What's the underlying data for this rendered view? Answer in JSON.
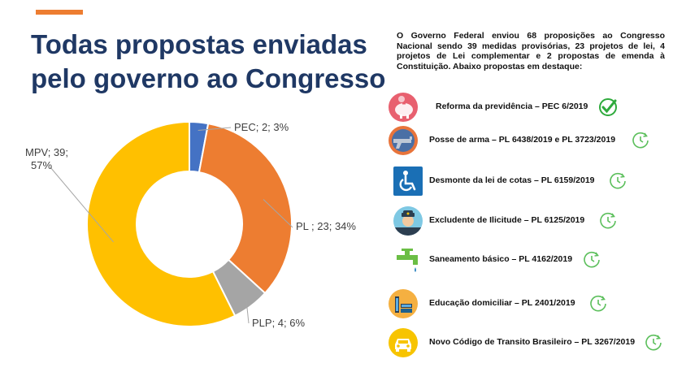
{
  "title": {
    "line1": "Todas propostas enviadas",
    "line2": "pelo governo ao Congresso"
  },
  "colors": {
    "accent": "#ED7D31",
    "title": "#1F3864",
    "pec": "#4472C4",
    "pl": "#ED7D31",
    "plp": "#A5A5A5",
    "mpv": "#FFC000",
    "status_green": "#2EAA3C"
  },
  "chart_data": {
    "type": "pie",
    "donut": true,
    "title": "Todas propostas enviadas pelo governo ao Congresso",
    "slices": [
      {
        "name": "PEC",
        "value": 2,
        "percent": 3,
        "label": "PEC; 2; 3%",
        "color": "#4472C4"
      },
      {
        "name": "PL",
        "value": 23,
        "percent": 34,
        "label": "PL ; 23; 34%",
        "color": "#ED7D31"
      },
      {
        "name": "PLP",
        "value": 4,
        "percent": 6,
        "label": "PLP; 4; 6%",
        "color": "#A5A5A5"
      },
      {
        "name": "MPV",
        "value": 39,
        "percent": 57,
        "label_lines": [
          "MPV; 39;",
          "57%"
        ],
        "color": "#FFC000"
      }
    ]
  },
  "intro": "O Governo Federal enviou 68 proposições ao Congresso Nacional sendo 39 medidas provisórias, 23 projetos de lei, 4 projetos de Lei complementar e 2 propostas de emenda à Constituição. Abaixo propostas em destaque:",
  "items": [
    {
      "label": "Reforma da previdência – PEC 6/2019",
      "icon": "piggy-bank-icon",
      "status": "approved-check-icon"
    },
    {
      "label": "Posse de arma – PL 6438/2019 e PL 3723/2019",
      "icon": "gun-icon",
      "status": "pending-clock-icon"
    },
    {
      "label": "Desmonte da lei de cotas – PL 6159/2019",
      "icon": "wheelchair-icon",
      "status": "pending-clock-icon"
    },
    {
      "label": "Excludente de Ilicitude – PL 6125/2019",
      "icon": "police-officer-icon",
      "status": "pending-clock-icon"
    },
    {
      "label": "Saneamento básico – PL 4162/2019",
      "icon": "water-tap-icon",
      "status": "pending-clock-icon"
    },
    {
      "label": "Educação domiciliar – PL 2401/2019",
      "icon": "books-icon",
      "status": "pending-clock-icon"
    },
    {
      "label": "Novo Código de Transito Brasileiro – PL 3267/2019",
      "icon": "car-icon",
      "status": "pending-clock-icon"
    }
  ]
}
